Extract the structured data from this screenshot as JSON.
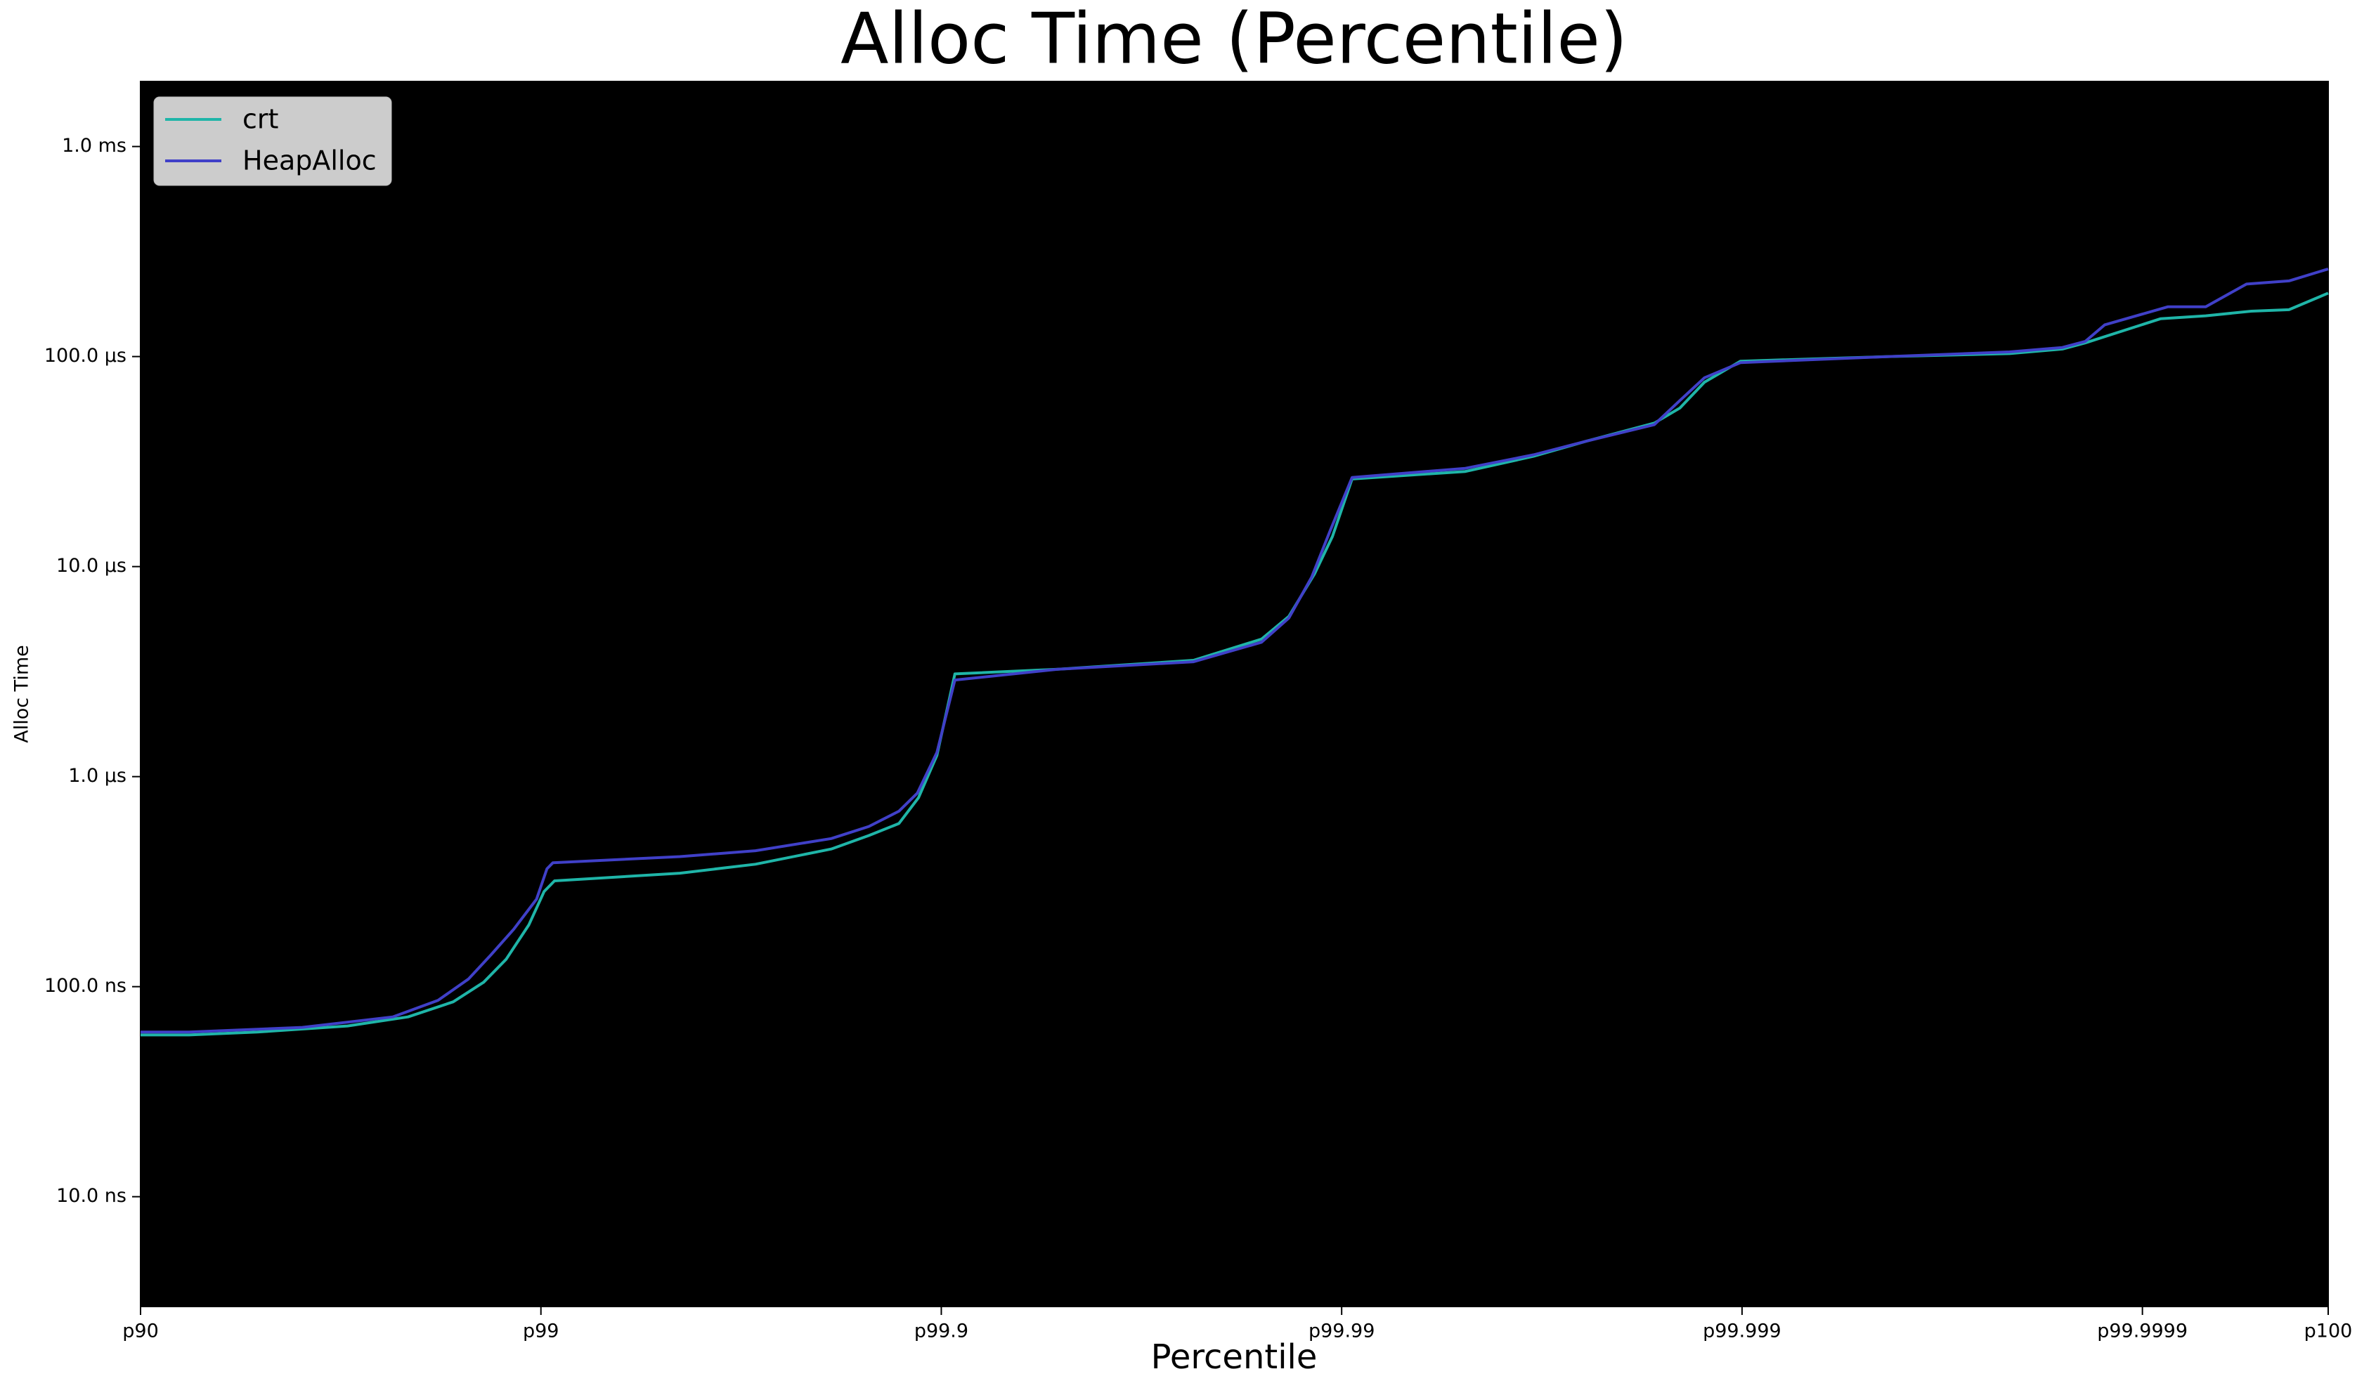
{
  "chart_data": {
    "type": "line",
    "title": "Alloc Time (Percentile)",
    "x_label": "Percentile",
    "y_label": "Alloc Time",
    "yscale": "log",
    "background": "#000000",
    "legend": "upper left",
    "xlim": [
      1,
      6.464
    ],
    "xticks": [
      {
        "value": 1,
        "label": "p90"
      },
      {
        "value": 2,
        "label": "p99"
      },
      {
        "value": 3,
        "label": "p99.9"
      },
      {
        "value": 4,
        "label": "p99.99"
      },
      {
        "value": 5,
        "label": "p99.999"
      },
      {
        "value": 6,
        "label": "p99.9999"
      },
      {
        "value": 6.464,
        "label": "p100"
      }
    ],
    "ylim": [
      3,
      2040000
    ],
    "yticks": [
      {
        "value": 10,
        "label": "10.0 ns"
      },
      {
        "value": 100,
        "label": "100.0 ns"
      },
      {
        "value": 1000,
        "label": "1.0 µs"
      },
      {
        "value": 10000,
        "label": "10.0 µs"
      },
      {
        "value": 100000,
        "label": "100.0 µs"
      },
      {
        "value": 1000000,
        "label": "1.0 ms"
      }
    ],
    "series": [
      {
        "name": "crt",
        "color": "#1fb5a8",
        "x": [
          1,
          1.121,
          1.291,
          1.517,
          1.668,
          1.781,
          1.857,
          1.913,
          1.97,
          2.008,
          2.034,
          2.347,
          2.536,
          2.725,
          2.819,
          2.894,
          2.943,
          2.989,
          3.034,
          3.291,
          3.63,
          3.8,
          3.868,
          3.932,
          3.977,
          4.026,
          4.309,
          4.479,
          4.611,
          4.781,
          4.845,
          4.906,
          4.996,
          5.366,
          5.668,
          5.8,
          5.857,
          6.045,
          6.158,
          6.272,
          6.366,
          6.464
        ],
        "values": [
          58.9,
          58.9,
          60.8,
          65.0,
          71.8,
          84.7,
          105,
          135,
          197,
          284,
          319,
          347,
          383,
          452,
          524,
          598,
          793,
          1262,
          3083,
          3243,
          3581,
          4519,
          5794,
          9204,
          13930,
          26120,
          28380,
          33500,
          39540,
          48230,
          56910,
          75470,
          95040,
          100000,
          103300,
          108600,
          116100,
          151300,
          156300,
          164400,
          167100,
          200400
        ]
      },
      {
        "name": "HeapAlloc",
        "color": "#4040c8",
        "x": [
          1,
          1.121,
          1.404,
          1.63,
          1.743,
          1.819,
          1.875,
          1.932,
          1.989,
          2.015,
          2.03,
          2.347,
          2.536,
          2.725,
          2.819,
          2.894,
          2.94,
          2.989,
          3.034,
          3.291,
          3.63,
          3.8,
          3.868,
          3.925,
          3.97,
          4.026,
          4.309,
          4.479,
          4.611,
          4.781,
          4.845,
          4.906,
          4.996,
          5.366,
          5.668,
          5.8,
          5.857,
          5.906,
          6.064,
          6.158,
          6.26,
          6.366,
          6.464
        ],
        "values": [
          60.8,
          60.8,
          64.0,
          71.8,
          86.1,
          108.7,
          141.6,
          187.6,
          261,
          364,
          389,
          416,
          444,
          507,
          579,
          684,
          834,
          1303,
          2884,
          3243,
          3524,
          4365,
          5689,
          8913,
          14620,
          26550,
          29380,
          34040,
          39540,
          47430,
          61800,
          79250,
          93540,
          100000,
          105200,
          110400,
          118000,
          141600,
          172600,
          172600,
          221400,
          229100,
          261300
        ]
      }
    ]
  }
}
